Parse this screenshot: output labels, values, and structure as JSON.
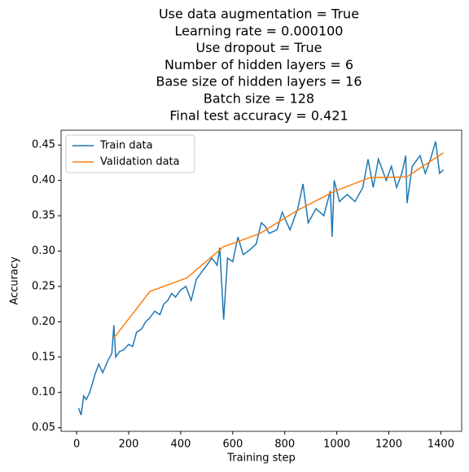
{
  "chart_data": {
    "type": "line",
    "title": [
      "Use data augmentation = True",
      "Learning rate = 0.000100",
      "Use dropout = True",
      "Number of hidden layers = 6",
      "Base size of hidden layers = 16",
      "Batch size = 128",
      "Final test accuracy = 0.421"
    ],
    "xlabel": "Training step",
    "ylabel": "Accuracy",
    "xlim": [
      -60,
      1480
    ],
    "ylim": [
      0.045,
      0.471
    ],
    "xticks": [
      0,
      200,
      400,
      600,
      800,
      1000,
      1200,
      1400
    ],
    "yticks": [
      0.05,
      {
        "value": 0.1,
        "label": "0.10"
      },
      0.15,
      {
        "value": 0.2,
        "label": "0.20"
      },
      0.25,
      {
        "value": 0.3,
        "label": "0.30"
      },
      0.35,
      {
        "value": 0.4,
        "label": "0.40"
      },
      0.45
    ],
    "legend": "upper left",
    "series": [
      {
        "name": "Train data",
        "color": "#1f77b4",
        "x": [
          7,
          17,
          27,
          37,
          50,
          60,
          70,
          85,
          100,
          120,
          135,
          143,
          150,
          165,
          180,
          200,
          215,
          230,
          250,
          265,
          280,
          300,
          320,
          335,
          350,
          365,
          380,
          400,
          420,
          440,
          460,
          480,
          500,
          520,
          540,
          550,
          565,
          580,
          600,
          620,
          640,
          660,
          690,
          710,
          725,
          740,
          770,
          790,
          820,
          850,
          870,
          890,
          920,
          950,
          975,
          982,
          990,
          1010,
          1040,
          1070,
          1100,
          1120,
          1140,
          1160,
          1190,
          1210,
          1230,
          1250,
          1265,
          1270,
          1290,
          1320,
          1340,
          1360,
          1380,
          1395,
          1410
        ],
        "values": [
          0.078,
          0.068,
          0.095,
          0.09,
          0.1,
          0.112,
          0.125,
          0.14,
          0.128,
          0.145,
          0.155,
          0.195,
          0.15,
          0.158,
          0.16,
          0.168,
          0.165,
          0.185,
          0.19,
          0.2,
          0.205,
          0.215,
          0.21,
          0.225,
          0.23,
          0.24,
          0.235,
          0.245,
          0.25,
          0.23,
          0.26,
          0.27,
          0.28,
          0.29,
          0.28,
          0.305,
          0.203,
          0.29,
          0.285,
          0.32,
          0.295,
          0.3,
          0.31,
          0.34,
          0.335,
          0.325,
          0.33,
          0.355,
          0.33,
          0.36,
          0.395,
          0.34,
          0.36,
          0.35,
          0.385,
          0.32,
          0.4,
          0.37,
          0.38,
          0.37,
          0.39,
          0.43,
          0.39,
          0.43,
          0.4,
          0.42,
          0.39,
          0.41,
          0.435,
          0.368,
          0.42,
          0.435,
          0.41,
          0.43,
          0.455,
          0.41,
          0.415
        ]
      },
      {
        "name": "Validation data",
        "color": "#ff7f0e",
        "x": [
          143,
          282,
          423,
          564,
          705,
          846,
          987,
          1128,
          1269,
          1410
        ],
        "values": [
          0.177,
          0.243,
          0.262,
          0.306,
          0.325,
          0.357,
          0.384,
          0.404,
          0.405,
          0.439
        ]
      }
    ]
  }
}
